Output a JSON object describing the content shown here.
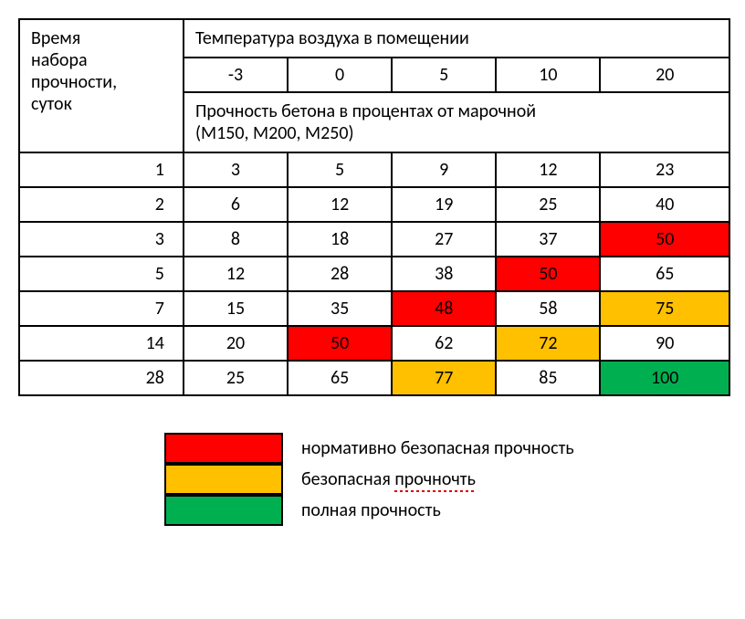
{
  "table": {
    "row_header": "Время\nнабора\nпрочности,\nсуток",
    "temp_header": "Температура воздуха в помещении",
    "temps": [
      "-3",
      "0",
      "5",
      "10",
      "20"
    ],
    "strength_header": "Прочность бетона в процентах от марочной\n(М150, М200, М250)",
    "rows": [
      {
        "label": "1",
        "cells": [
          {
            "v": "3"
          },
          {
            "v": "5"
          },
          {
            "v": "9"
          },
          {
            "v": "12"
          },
          {
            "v": "23"
          }
        ]
      },
      {
        "label": "2",
        "cells": [
          {
            "v": "6"
          },
          {
            "v": "12"
          },
          {
            "v": "19"
          },
          {
            "v": "25"
          },
          {
            "v": "40"
          }
        ]
      },
      {
        "label": "3",
        "cells": [
          {
            "v": "8"
          },
          {
            "v": "18"
          },
          {
            "v": "27"
          },
          {
            "v": "37"
          },
          {
            "v": "50",
            "bg": "#ff0000"
          }
        ]
      },
      {
        "label": "5",
        "cells": [
          {
            "v": "12"
          },
          {
            "v": "28"
          },
          {
            "v": "38"
          },
          {
            "v": "50",
            "bg": "#ff0000"
          },
          {
            "v": "65"
          }
        ]
      },
      {
        "label": "7",
        "cells": [
          {
            "v": "15"
          },
          {
            "v": "35"
          },
          {
            "v": "48",
            "bg": "#ff0000"
          },
          {
            "v": "58"
          },
          {
            "v": "75",
            "bg": "#ffc000"
          }
        ]
      },
      {
        "label": "14",
        "cells": [
          {
            "v": "20"
          },
          {
            "v": "50",
            "bg": "#ff0000"
          },
          {
            "v": "62"
          },
          {
            "v": "72",
            "bg": "#ffc000"
          },
          {
            "v": "90"
          }
        ]
      },
      {
        "label": "28",
        "cells": [
          {
            "v": "25"
          },
          {
            "v": "65"
          },
          {
            "v": "77",
            "bg": "#ffc000"
          },
          {
            "v": "85"
          },
          {
            "v": "100",
            "bg": "#00b050"
          }
        ]
      }
    ]
  },
  "legend": {
    "items": [
      {
        "color": "#ff0000",
        "text": "нормативно безопасная прочность",
        "typo": false
      },
      {
        "color": "#ffc000",
        "text_before": "безопасная ",
        "text_typo": "прочночть",
        "typo": true
      },
      {
        "color": "#00b050",
        "text": "полная прочность",
        "typo": false
      }
    ]
  },
  "colors": {
    "red": "#ff0000",
    "orange": "#ffc000",
    "green": "#00b050",
    "border": "#000000",
    "background": "#ffffff"
  },
  "typography": {
    "font_family": "Calibri, Arial, sans-serif",
    "body_fontsize": 20
  }
}
